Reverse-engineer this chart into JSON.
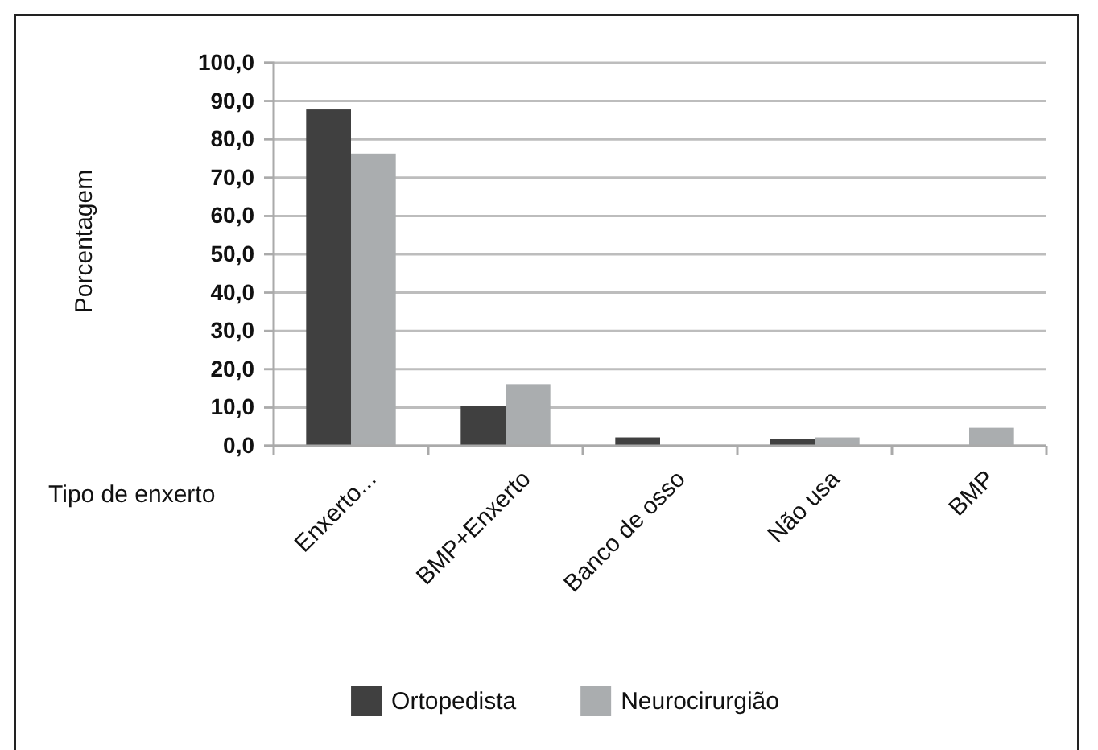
{
  "chart_data": {
    "type": "bar",
    "ylabel": "Porcentagem",
    "xlabel": "Tipo de enxerto",
    "categories": [
      "Enxerto...",
      "BMP+Enxerto",
      "Banco de osso",
      "Não usa",
      "BMP"
    ],
    "series": [
      {
        "name": "Ortopedista",
        "color": "#404040",
        "values": [
          87.8,
          10.3,
          2.2,
          1.8,
          0
        ]
      },
      {
        "name": "Neurocirurgião",
        "color": "#aaadaf",
        "values": [
          76.3,
          16.1,
          0,
          2.2,
          4.7
        ]
      }
    ],
    "ylim": [
      0,
      100
    ],
    "yticks": [
      {
        "value": 0,
        "label": "0,0"
      },
      {
        "value": 10,
        "label": "10,0"
      },
      {
        "value": 20,
        "label": "20,0"
      },
      {
        "value": 30,
        "label": "30,0"
      },
      {
        "value": 40,
        "label": "40,0"
      },
      {
        "value": 50,
        "label": "50,0"
      },
      {
        "value": 60,
        "label": "60,0"
      },
      {
        "value": 70,
        "label": "70,0"
      },
      {
        "value": 80,
        "label": "80,0"
      },
      {
        "value": 90,
        "label": "90,0"
      },
      {
        "value": 100,
        "label": "100,0"
      }
    ],
    "grid": "y",
    "legend": "bottom"
  }
}
